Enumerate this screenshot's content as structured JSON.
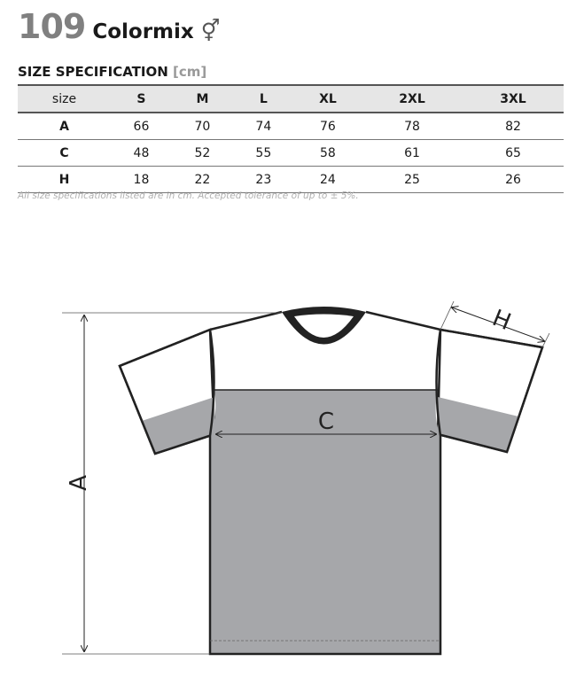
{
  "header": {
    "model_number": "109",
    "name": "Colormix",
    "gender_symbol": "⚥"
  },
  "spec": {
    "title": "SIZE SPECIFICATION",
    "unit": "[cm]"
  },
  "table": {
    "columns": [
      "size",
      "S",
      "M",
      "L",
      "XL",
      "2XL",
      "3XL"
    ],
    "rows": [
      {
        "label": "A",
        "values": [
          "66",
          "70",
          "74",
          "76",
          "78",
          "82"
        ]
      },
      {
        "label": "C",
        "values": [
          "48",
          "52",
          "55",
          "58",
          "61",
          "65"
        ]
      },
      {
        "label": "H",
        "values": [
          "18",
          "22",
          "23",
          "24",
          "25",
          "26"
        ]
      }
    ]
  },
  "note": "All size specifications listed are in cm. Accepted tolerance of up to ± 5%.",
  "diagram": {
    "labels": {
      "length": "A",
      "chest": "C",
      "sleeve": "H"
    },
    "colors": {
      "body": "#a6a7aa",
      "yoke": "#ffffff",
      "collar": "#222222"
    }
  }
}
